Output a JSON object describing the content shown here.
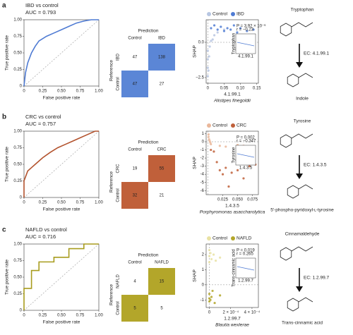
{
  "panels": [
    {
      "label": "a",
      "substrate": "Tryptophan",
      "enzyme": "EC: 4.1.99.1",
      "product": "Indole"
    },
    {
      "label": "b",
      "substrate": "Tyrosine",
      "enzyme": "EC: 1.4.3.5",
      "product": "5′-phospho-pyridoxyl-ʟ-tyrosine"
    },
    {
      "label": "c",
      "substrate": "Cinnamaldehyde",
      "enzyme": "EC: 1.2.99.7",
      "product": "Trans-cinnamic acid"
    }
  ],
  "chart_data": [
    {
      "type": "line",
      "title": "IBD vs control",
      "subtitle": "AUC = 0.793",
      "xlabel": "False positive rate",
      "ylabel": "True positive rate",
      "x": [
        0,
        0.02,
        0.05,
        0.1,
        0.15,
        0.2,
        0.3,
        0.4,
        0.5,
        0.6,
        0.7,
        0.8,
        0.9,
        1
      ],
      "series": [
        {
          "color": "#4f7bd3",
          "values": [
            0,
            0.2,
            0.35,
            0.5,
            0.6,
            0.68,
            0.75,
            0.8,
            0.85,
            0.9,
            0.95,
            0.98,
            1,
            1
          ]
        }
      ],
      "xlim": [
        0,
        1
      ],
      "ylim": [
        0,
        1
      ],
      "xticks": [
        0,
        0.25,
        {
          "value": 0.5,
          "label": "0.50"
        },
        0.75,
        {
          "value": 1,
          "label": "1.00"
        }
      ],
      "yticks": [
        0,
        0.25,
        {
          "value": 0.5,
          "label": "0.50"
        },
        0.75,
        {
          "value": 1,
          "label": "1.00"
        }
      ]
    },
    {
      "type": "heatmap",
      "title": "Prediction",
      "ylabel": "Reference",
      "color": "#5b86d6",
      "x": [
        "Control",
        "IBD"
      ],
      "y": [
        "IBD",
        "Control"
      ],
      "values": [
        [
          47,
          138
        ],
        [
          47,
          27
        ]
      ]
    },
    {
      "type": "scatter",
      "ylabel": "SHAP",
      "xlabel": "4.1.99.1",
      "subtitle": "Alistipes finegoldii",
      "series": [
        {
          "name": "Control",
          "color": "#b7c6e2",
          "x": [
            0,
            0,
            0,
            0,
            0.002,
            0.004,
            0.006,
            0.01,
            0.015,
            0.02,
            0.03,
            0.05
          ],
          "values": [
            -2.4,
            -1.8,
            -1.2,
            -0.6,
            -2.0,
            -1.0,
            -0.3,
            0.1,
            0.2,
            0.5,
            0.7,
            0.9
          ]
        },
        {
          "name": "IBD",
          "color": "#4f7bd3",
          "x": [
            0.01,
            0.02,
            0.03,
            0.04,
            0.05,
            0.06,
            0.07,
            0.08,
            0.09,
            0.1,
            0.12,
            0.14
          ],
          "values": [
            1.0,
            1.2,
            0.9,
            1.1,
            0.8,
            1.0,
            0.9,
            1.2,
            0.7,
            1.0,
            0.8,
            0.9
          ]
        }
      ],
      "xlim": [
        -0.005,
        0.155
      ],
      "ylim": [
        -2.9,
        1.6
      ],
      "xticks": [
        0,
        0.05,
        {
          "value": 0.1,
          "label": "0.10"
        },
        0.15
      ],
      "yticks": [
        {
          "value": 0,
          "label": "0.0"
        },
        {
          "value": -2.5,
          "label": "−2.5"
        }
      ],
      "inset": {
        "ylabel": "Tryptophan",
        "xlabel": "4.1.99.1",
        "stats": [
          "P = 3.92 × 10⁻⁶",
          "r = −0.23"
        ]
      }
    },
    {
      "type": "line",
      "title": "CRC vs control",
      "subtitle": "AUC = 0.757",
      "xlabel": "False positive rate",
      "ylabel": "True positive rate",
      "x": [
        0,
        0,
        0.05,
        0.1,
        0.15,
        0.25,
        0.35,
        0.45,
        0.55,
        0.65,
        0.75,
        0.85,
        0.95,
        1
      ],
      "series": [
        {
          "color": "#b3532e",
          "values": [
            0,
            0.25,
            0.4,
            0.45,
            0.5,
            0.6,
            0.68,
            0.75,
            0.8,
            0.85,
            0.9,
            0.95,
            1,
            1
          ]
        }
      ],
      "xlim": [
        0,
        1
      ],
      "ylim": [
        0,
        1
      ],
      "xticks": [
        0,
        0.25,
        {
          "value": 0.5,
          "label": "0.50"
        },
        0.75,
        {
          "value": 1,
          "label": "1.00"
        }
      ],
      "yticks": [
        0,
        0.25,
        {
          "value": 0.5,
          "label": "0.50"
        },
        0.75,
        {
          "value": 1,
          "label": "1.00"
        }
      ]
    },
    {
      "type": "heatmap",
      "title": "Prediction",
      "ylabel": "Reference",
      "color": "#c0603a",
      "x": [
        "Control",
        "CRC"
      ],
      "y": [
        "CRC",
        "Control"
      ],
      "values": [
        [
          19,
          55
        ],
        [
          32,
          21
        ]
      ]
    },
    {
      "type": "scatter",
      "ylabel": "SHAP",
      "xlabel": "1.4.3.5",
      "subtitle": "Porphyromonas asaccharolytica",
      "series": [
        {
          "name": "Control",
          "color": "#eab79a",
          "x": [
            0.001,
            0.001,
            0.002,
            0.003,
            0.004,
            0.005,
            0.02,
            0.03,
            0.05,
            0.06
          ],
          "values": [
            0.9,
            0.6,
            0.3,
            0.1,
            -0.1,
            -0.3,
            -0.5,
            -0.6,
            -0.4,
            -0.5
          ]
        },
        {
          "name": "CRC",
          "color": "#c0603a",
          "x": [
            0.005,
            0.01,
            0.015,
            0.02,
            0.025,
            0.03,
            0.035,
            0.04,
            0.05,
            0.06,
            0.07,
            0.08
          ],
          "values": [
            -1,
            -1.2,
            -2.5,
            -3.5,
            -4,
            -3.2,
            -5.5,
            -3.8,
            -3.5,
            -4.5,
            -3,
            -2.8
          ]
        }
      ],
      "xlim": [
        -0.003,
        0.085
      ],
      "ylim": [
        -6.5,
        1.3
      ],
      "xticks": [
        0.025,
        {
          "value": 0.05,
          "label": "0.050"
        },
        0.075
      ],
      "yticks": [
        1,
        0,
        -1,
        -2,
        -3,
        -4,
        -5,
        -6
      ],
      "inset": {
        "ylabel": "Tyrosine",
        "xlabel": "1.4.3.5",
        "stats": [
          "P = 0.002",
          "r = −0.347"
        ]
      }
    },
    {
      "type": "line",
      "title": "NAFLD vs control",
      "subtitle": "AUC = 0.716",
      "xlabel": "False positive rate",
      "ylabel": "True positive rate",
      "x": [
        0,
        0,
        0.1,
        0.1,
        0.2,
        0.2,
        0.4,
        0.4,
        0.6,
        0.6,
        0.8,
        0.8,
        1
      ],
      "series": [
        {
          "color": "#a89c1e",
          "values": [
            0,
            0.33,
            0.33,
            0.6,
            0.6,
            0.73,
            0.73,
            0.8,
            0.8,
            0.93,
            0.93,
            1,
            1
          ]
        }
      ],
      "xlim": [
        0,
        1
      ],
      "ylim": [
        0,
        1
      ],
      "xticks": [
        0,
        0.25,
        {
          "value": 0.5,
          "label": "0.50"
        },
        0.75,
        {
          "value": 1,
          "label": "1.00"
        }
      ],
      "yticks": [
        0,
        0.25,
        {
          "value": 0.5,
          "label": "0.50"
        },
        0.75,
        {
          "value": 1,
          "label": "1.00"
        }
      ]
    },
    {
      "type": "heatmap",
      "title": "Prediction",
      "ylabel": "Reference",
      "color": "#b3a62a",
      "x": [
        "Control",
        "NAFLD"
      ],
      "y": [
        "NAFLD",
        "Control"
      ],
      "values": [
        [
          4,
          15
        ],
        [
          5,
          5
        ]
      ]
    },
    {
      "type": "scatter",
      "ylabel": "SHAP",
      "xlabel": "1.2.99.7",
      "subtitle": "Blautia wexlerae",
      "series": [
        {
          "name": "Control",
          "color": "#e9e2a3",
          "x": [
            0,
            0,
            0,
            1e-05,
            2e-05,
            4e-05,
            6e-05,
            0.0001
          ],
          "values": [
            2.3,
            1.9,
            1.5,
            2.1,
            1.7,
            2.0,
            1.6,
            1.8
          ]
        },
        {
          "name": "NAFLD",
          "color": "#b3a62a",
          "x": [
            0,
            0,
            0,
            1e-05,
            2e-05,
            3e-05,
            5e-05,
            0.0001
          ],
          "values": [
            -1.1,
            -0.9,
            -0.6,
            -1.0,
            -0.8,
            -0.4,
            -1.2,
            -0.7
          ]
        }
      ],
      "xlim": [
        -3e-05,
        0.00046
      ],
      "ylim": [
        -1.5,
        2.7
      ],
      "xticks": [
        0,
        {
          "value": 0.0002,
          "label": "2 × 10⁻⁴"
        },
        {
          "value": 0.0004,
          "label": "4 × 10⁻⁴"
        }
      ],
      "yticks": [
        -1,
        0,
        1,
        2
      ],
      "inset": {
        "ylabel": "Trans-cinnamic acid",
        "xlabel": "1.2.99.7",
        "stats": [
          "P = 0.019",
          "r = 0.265"
        ]
      }
    }
  ]
}
